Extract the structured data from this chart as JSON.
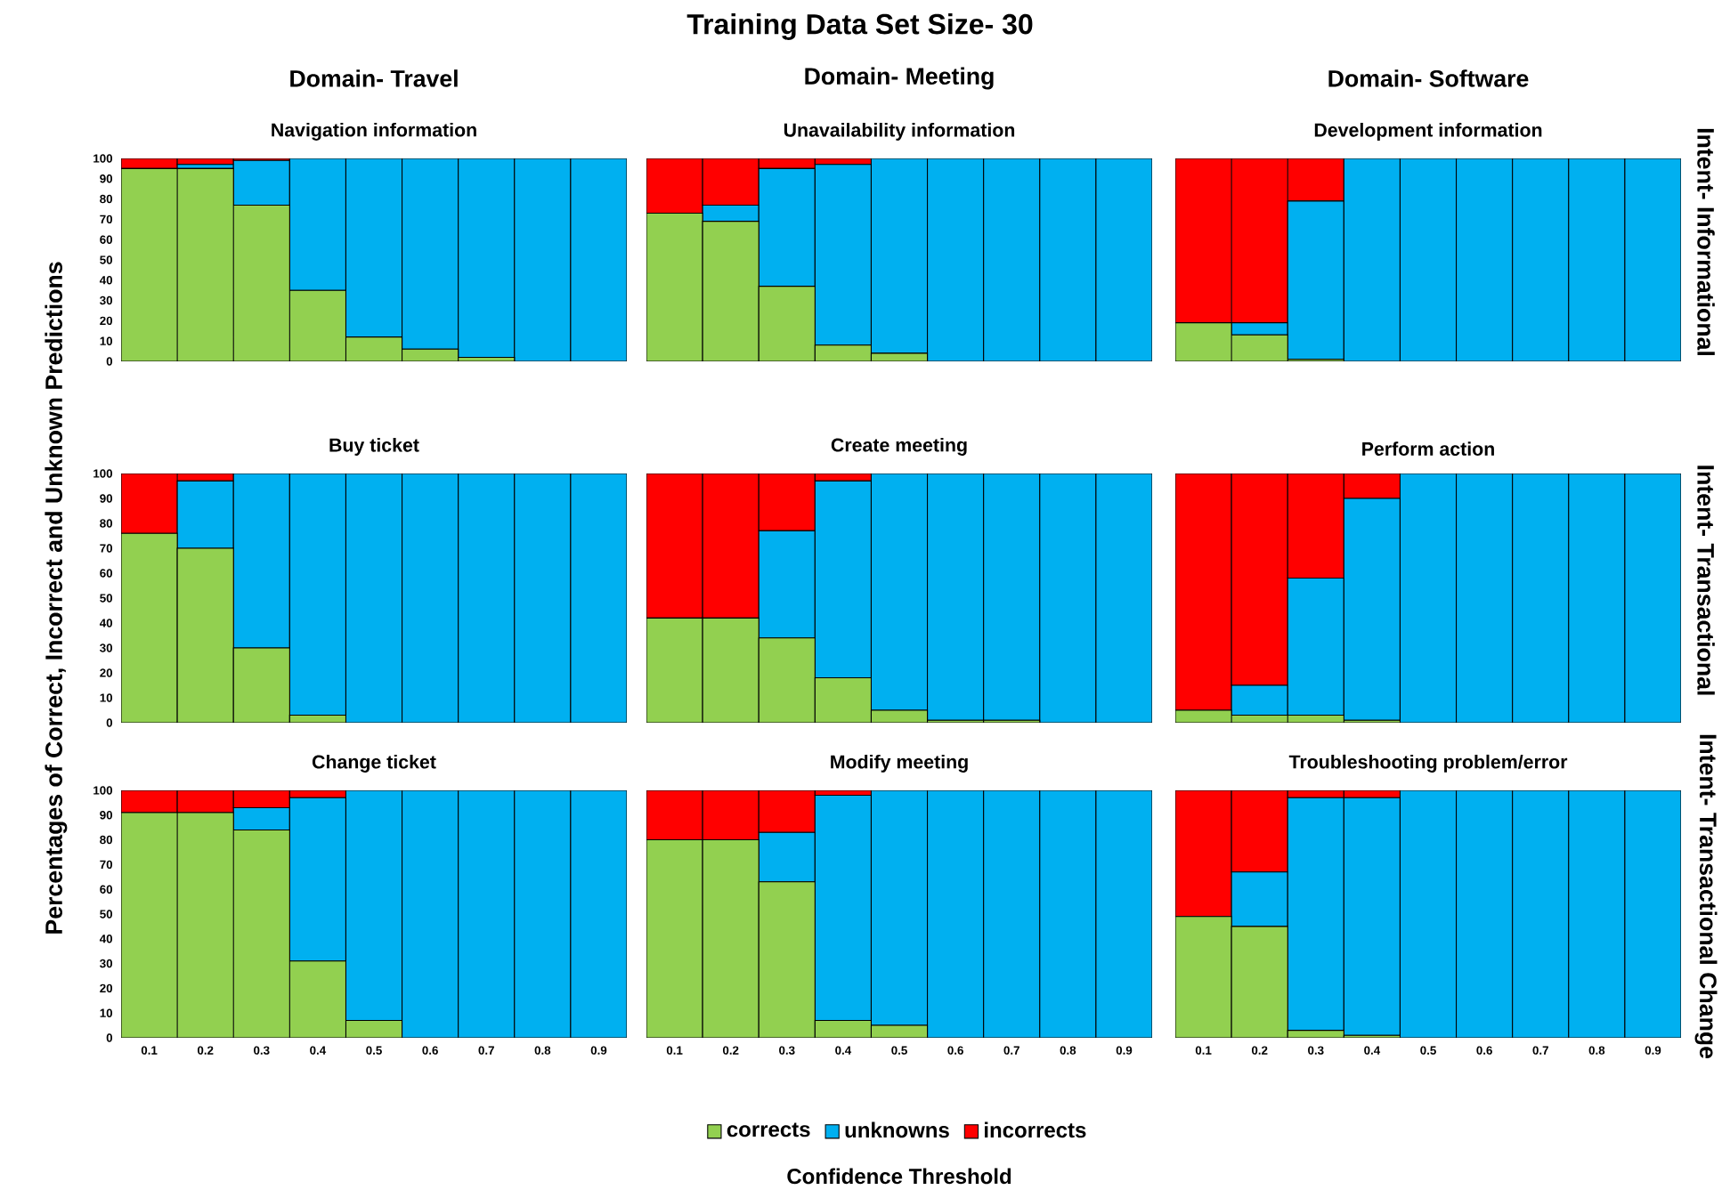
{
  "chart_data": [
    {
      "type": "other",
      "title": "Training Data Set Size- 30",
      "annotations": [
        "Domain- Travel",
        "Domain- Meeting",
        "Domain- Software",
        "Intent- Informational",
        "Intent- Transactional",
        "Intent- Transactional Change"
      ]
    },
    {
      "type": "bar",
      "stacked": true,
      "title": "Navigation information",
      "categories": [
        "0.1",
        "0.2",
        "0.3",
        "0.4",
        "0.5",
        "0.6",
        "0.7",
        "0.8",
        "0.9"
      ],
      "ylim": [
        0,
        100
      ],
      "yticks": [
        0,
        10,
        20,
        30,
        40,
        50,
        60,
        70,
        80,
        90,
        100
      ],
      "tick_labels": "y",
      "series": [
        {
          "color": "#92d050",
          "values": [
            95,
            95,
            77,
            35,
            12,
            6,
            2,
            0,
            0
          ]
        },
        {
          "color": "#00b0f0",
          "values": [
            0,
            2,
            22,
            65,
            88,
            94,
            98,
            100,
            100
          ]
        },
        {
          "color": "#ff0000",
          "values": [
            5,
            3,
            1,
            0,
            0,
            0,
            0,
            0,
            0
          ]
        }
      ]
    },
    {
      "type": "bar",
      "stacked": true,
      "title": "Unavailability information",
      "categories": [
        "0.1",
        "0.2",
        "0.3",
        "0.4",
        "0.5",
        "0.6",
        "0.7",
        "0.8",
        "0.9"
      ],
      "ylim": [
        0,
        100
      ],
      "yticks": [
        0,
        10,
        20,
        30,
        40,
        50,
        60,
        70,
        80,
        90,
        100
      ],
      "tick_labels": false,
      "series": [
        {
          "color": "#92d050",
          "values": [
            73,
            69,
            37,
            8,
            4,
            0,
            0,
            0,
            0
          ]
        },
        {
          "color": "#00b0f0",
          "values": [
            0,
            8,
            58,
            89,
            96,
            100,
            100,
            100,
            100
          ]
        },
        {
          "color": "#ff0000",
          "values": [
            27,
            23,
            5,
            3,
            0,
            0,
            0,
            0,
            0
          ]
        }
      ]
    },
    {
      "type": "bar",
      "stacked": true,
      "title": "Development information",
      "categories": [
        "0.1",
        "0.2",
        "0.3",
        "0.4",
        "0.5",
        "0.6",
        "0.7",
        "0.8",
        "0.9"
      ],
      "ylim": [
        0,
        100
      ],
      "yticks": [
        0,
        10,
        20,
        30,
        40,
        50,
        60,
        70,
        80,
        90,
        100
      ],
      "tick_labels": false,
      "series": [
        {
          "color": "#92d050",
          "values": [
            19,
            13,
            1,
            0,
            0,
            0,
            0,
            0,
            0
          ]
        },
        {
          "color": "#00b0f0",
          "values": [
            0,
            6,
            78,
            100,
            100,
            100,
            100,
            100,
            100
          ]
        },
        {
          "color": "#ff0000",
          "values": [
            81,
            81,
            21,
            0,
            0,
            0,
            0,
            0,
            0
          ]
        }
      ]
    },
    {
      "type": "bar",
      "stacked": true,
      "title": "Buy ticket",
      "ylabel": "Percentages of Correct, Incorrect and Unknown Predictions",
      "categories": [
        "0.1",
        "0.2",
        "0.3",
        "0.4",
        "0.5",
        "0.6",
        "0.7",
        "0.8",
        "0.9"
      ],
      "ylim": [
        0,
        100
      ],
      "yticks": [
        0,
        10,
        20,
        30,
        40,
        50,
        60,
        70,
        80,
        90,
        100
      ],
      "tick_labels": "y",
      "series": [
        {
          "color": "#92d050",
          "values": [
            76,
            70,
            30,
            3,
            0,
            0,
            0,
            0,
            0
          ]
        },
        {
          "color": "#00b0f0",
          "values": [
            0,
            27,
            70,
            97,
            100,
            100,
            100,
            100,
            100
          ]
        },
        {
          "color": "#ff0000",
          "values": [
            24,
            3,
            0,
            0,
            0,
            0,
            0,
            0,
            0
          ]
        }
      ]
    },
    {
      "type": "bar",
      "stacked": true,
      "title": "Create meeting",
      "categories": [
        "0.1",
        "0.2",
        "0.3",
        "0.4",
        "0.5",
        "0.6",
        "0.7",
        "0.8",
        "0.9"
      ],
      "ylim": [
        0,
        100
      ],
      "yticks": [
        0,
        10,
        20,
        30,
        40,
        50,
        60,
        70,
        80,
        90,
        100
      ],
      "tick_labels": false,
      "series": [
        {
          "color": "#92d050",
          "values": [
            42,
            42,
            34,
            18,
            5,
            1,
            1,
            0,
            0
          ]
        },
        {
          "color": "#00b0f0",
          "values": [
            0,
            0,
            43,
            79,
            95,
            99,
            99,
            100,
            100
          ]
        },
        {
          "color": "#ff0000",
          "values": [
            58,
            58,
            23,
            3,
            0,
            0,
            0,
            0,
            0
          ]
        }
      ]
    },
    {
      "type": "bar",
      "stacked": true,
      "title": "Perform action",
      "categories": [
        "0.1",
        "0.2",
        "0.3",
        "0.4",
        "0.5",
        "0.6",
        "0.7",
        "0.8",
        "0.9"
      ],
      "ylim": [
        0,
        100
      ],
      "yticks": [
        0,
        10,
        20,
        30,
        40,
        50,
        60,
        70,
        80,
        90,
        100
      ],
      "tick_labels": false,
      "series": [
        {
          "color": "#92d050",
          "values": [
            5,
            3,
            3,
            1,
            0,
            0,
            0,
            0,
            0
          ]
        },
        {
          "color": "#00b0f0",
          "values": [
            0,
            12,
            55,
            89,
            100,
            100,
            100,
            100,
            100
          ]
        },
        {
          "color": "#ff0000",
          "values": [
            95,
            85,
            42,
            10,
            0,
            0,
            0,
            0,
            0
          ]
        }
      ]
    },
    {
      "type": "bar",
      "stacked": true,
      "title": "Change ticket",
      "categories": [
        "0.1",
        "0.2",
        "0.3",
        "0.4",
        "0.5",
        "0.6",
        "0.7",
        "0.8",
        "0.9"
      ],
      "ylim": [
        0,
        100
      ],
      "yticks": [
        0,
        10,
        20,
        30,
        40,
        50,
        60,
        70,
        80,
        90,
        100
      ],
      "series": [
        {
          "color": "#92d050",
          "values": [
            91,
            91,
            84,
            31,
            7,
            0,
            0,
            0,
            0
          ]
        },
        {
          "color": "#00b0f0",
          "values": [
            0,
            0,
            9,
            66,
            93,
            100,
            100,
            100,
            100
          ]
        },
        {
          "color": "#ff0000",
          "values": [
            9,
            9,
            7,
            3,
            0,
            0,
            0,
            0,
            0
          ]
        }
      ]
    },
    {
      "type": "bar",
      "stacked": true,
      "title": "Modify meeting",
      "xlabel": "Confidence Threshold",
      "legend": "bottom",
      "categories": [
        "0.1",
        "0.2",
        "0.3",
        "0.4",
        "0.5",
        "0.6",
        "0.7",
        "0.8",
        "0.9"
      ],
      "ylim": [
        0,
        100
      ],
      "yticks": [
        0,
        10,
        20,
        30,
        40,
        50,
        60,
        70,
        80,
        90,
        100
      ],
      "tick_labels": "x",
      "series": [
        {
          "name": "corrects",
          "color": "#92d050",
          "values": [
            80,
            80,
            63,
            7,
            5,
            0,
            0,
            0,
            0
          ]
        },
        {
          "name": "unknowns",
          "color": "#00b0f0",
          "values": [
            0,
            0,
            20,
            91,
            95,
            100,
            100,
            100,
            100
          ]
        },
        {
          "name": "incorrects",
          "color": "#ff0000",
          "values": [
            20,
            20,
            17,
            2,
            0,
            0,
            0,
            0,
            0
          ]
        }
      ]
    },
    {
      "type": "bar",
      "stacked": true,
      "title": "Troubleshooting problem/error",
      "categories": [
        "0.1",
        "0.2",
        "0.3",
        "0.4",
        "0.5",
        "0.6",
        "0.7",
        "0.8",
        "0.9"
      ],
      "ylim": [
        0,
        100
      ],
      "yticks": [
        0,
        10,
        20,
        30,
        40,
        50,
        60,
        70,
        80,
        90,
        100
      ],
      "tick_labels": "x",
      "series": [
        {
          "color": "#92d050",
          "values": [
            49,
            45,
            3,
            1,
            0,
            0,
            0,
            0,
            0
          ]
        },
        {
          "color": "#00b0f0",
          "values": [
            0,
            22,
            94,
            96,
            100,
            100,
            100,
            100,
            100
          ]
        },
        {
          "color": "#ff0000",
          "values": [
            51,
            33,
            3,
            3,
            0,
            0,
            0,
            0,
            0
          ]
        }
      ]
    }
  ]
}
